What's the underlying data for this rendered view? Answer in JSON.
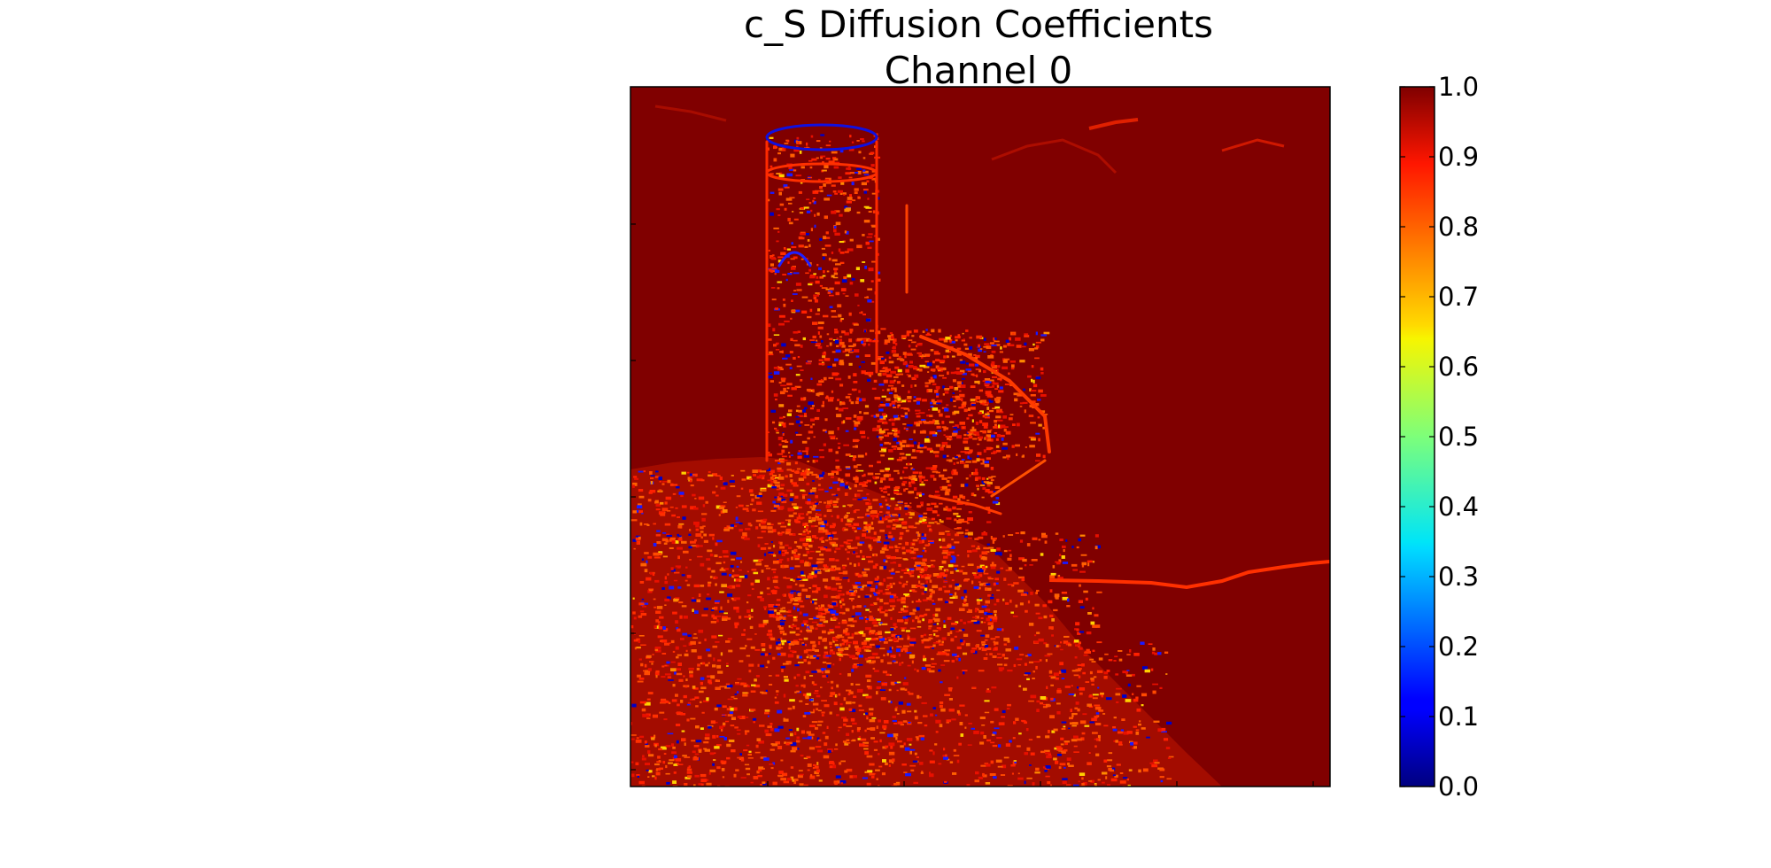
{
  "chart_data": {
    "type": "heatmap",
    "title_lines": [
      "c_S Diffusion Coefficients",
      "Channel 0"
    ],
    "colormap": "jet",
    "value_range": [
      0.0,
      1.0
    ],
    "colorbar_ticks": [
      "0.0",
      "0.1",
      "0.2",
      "0.3",
      "0.4",
      "0.5",
      "0.6",
      "0.7",
      "0.8",
      "0.9",
      "1.0"
    ],
    "image_axes_tick_labels": "none",
    "background_value": 1.0,
    "content": "edge-response map of a castle tower; values near 1.0 (dark red) everywhere except along edges, where values drop toward 0.0 (blue)"
  }
}
